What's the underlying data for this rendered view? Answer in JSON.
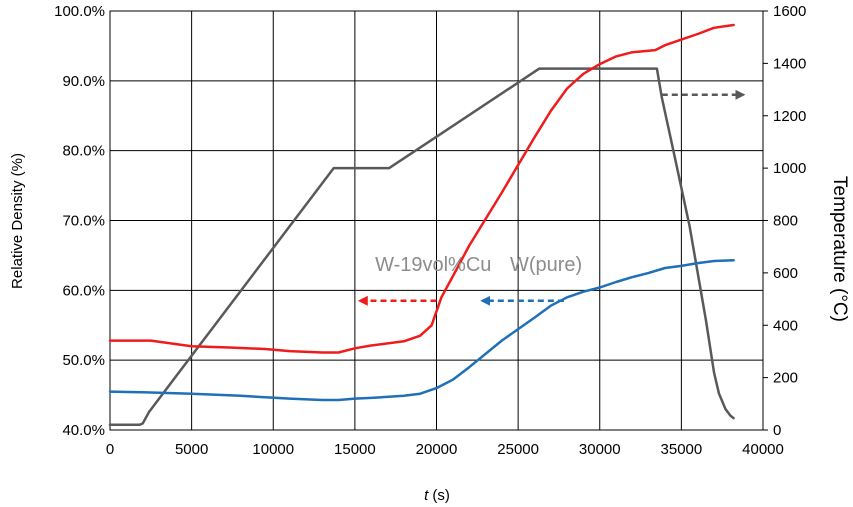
{
  "chart_data": {
    "type": "line",
    "xlabel_italic": "t",
    "xlabel_unit": " (s)",
    "ylabel_left": "Relative Density (%)",
    "ylabel_right": "Temperature (°C)",
    "xlim": [
      0,
      40000
    ],
    "ylim_left": [
      0.4,
      1.0
    ],
    "ylim_right": [
      0,
      1600
    ],
    "x_ticks": [
      0,
      5000,
      10000,
      15000,
      20000,
      25000,
      30000,
      35000,
      40000
    ],
    "x_tick_labels": [
      "0",
      "5000",
      "10000",
      "15000",
      "20000",
      "25000",
      "30000",
      "35000",
      "40000"
    ],
    "y_left_ticks": [
      0.4,
      0.5,
      0.6,
      0.7,
      0.8,
      0.9,
      1.0
    ],
    "y_left_tick_labels": [
      "40.0%",
      "50.0%",
      "60.0%",
      "70.0%",
      "80.0%",
      "90.0%",
      "100.0%"
    ],
    "y_right_ticks": [
      0,
      200,
      400,
      600,
      800,
      1000,
      1200,
      1400,
      1600
    ],
    "y_right_tick_labels": [
      "0",
      "200",
      "400",
      "600",
      "800",
      "1000",
      "1200",
      "1400",
      "1600"
    ],
    "grid": "vertical and horizontal",
    "series": [
      {
        "name": "W-19vol%Cu",
        "axis": "left",
        "color": "#ee1c1c",
        "x": [
          0,
          2500,
          5000,
          7500,
          9500,
          11000,
          13000,
          14000,
          15000,
          16000,
          18000,
          19000,
          19700,
          20300,
          21000,
          22000,
          24000,
          26000,
          27000,
          28000,
          29000,
          30000,
          31000,
          32000,
          33400,
          34000,
          35000,
          36000,
          37000,
          38200
        ],
        "y": [
          0.528,
          0.528,
          0.52,
          0.518,
          0.516,
          0.513,
          0.511,
          0.511,
          0.517,
          0.521,
          0.527,
          0.535,
          0.55,
          0.59,
          0.62,
          0.664,
          0.74,
          0.819,
          0.857,
          0.889,
          0.91,
          0.924,
          0.935,
          0.941,
          0.944,
          0.951,
          0.959,
          0.967,
          0.976,
          0.98
        ]
      },
      {
        "name": "W(pure)",
        "axis": "left",
        "color": "#1f6fb9",
        "x": [
          0,
          2000,
          5000,
          8000,
          9500,
          11000,
          13000,
          14000,
          15000,
          16000,
          18000,
          19000,
          20000,
          21000,
          22000,
          24000,
          26000,
          27000,
          28000,
          29000,
          30000,
          31000,
          32000,
          33000,
          34000,
          35000,
          36000,
          37000,
          38200
        ],
        "y": [
          0.455,
          0.454,
          0.452,
          0.449,
          0.447,
          0.445,
          0.443,
          0.443,
          0.445,
          0.446,
          0.449,
          0.452,
          0.46,
          0.472,
          0.49,
          0.528,
          0.561,
          0.578,
          0.59,
          0.598,
          0.604,
          0.612,
          0.619,
          0.625,
          0.632,
          0.635,
          0.639,
          0.642,
          0.643
        ]
      },
      {
        "name": "",
        "axis": "right",
        "color": "#595959",
        "x": [
          0,
          1800,
          2000,
          2400,
          13700,
          17100,
          26300,
          33500,
          33800,
          34500,
          35500,
          36500,
          37000,
          37300,
          37700,
          38000,
          38200
        ],
        "y": [
          20,
          20,
          25,
          70,
          1000,
          1000,
          1380,
          1380,
          1270,
          1070,
          780,
          420,
          220,
          140,
          80,
          55,
          45
        ]
      }
    ],
    "annotations": [
      {
        "text": "W-19vol%Cu",
        "x": 19800,
        "y": 0.628
      },
      {
        "text": "W(pure)",
        "x": 24500,
        "y": 0.628
      }
    ],
    "arrows": [
      {
        "color": "#ee1c1c",
        "from": [
          20000,
          0.585
        ],
        "to": [
          15300,
          0.585
        ]
      },
      {
        "color": "#1f6fb9",
        "from": [
          27800,
          0.585
        ],
        "to": [
          22800,
          0.585
        ]
      },
      {
        "color": "#595959",
        "from": [
          33800,
          1280
        ],
        "to": [
          38800,
          1280
        ]
      }
    ]
  }
}
